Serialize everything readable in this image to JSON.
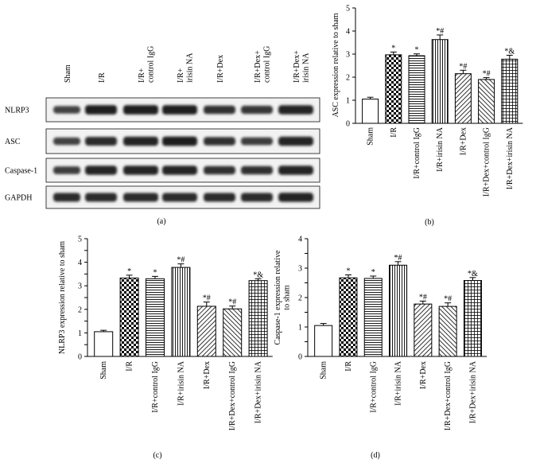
{
  "blot": {
    "lane_labels": [
      "Sham",
      "I/R",
      "I/R+\ncontrol IgG",
      "I/R+\nirisin NA",
      "I/R+Dex",
      "I/R+Dex+\ncontrol IgG",
      "I/R+Dex+\nirisin NA"
    ],
    "rows": [
      {
        "label": "NLRP3",
        "intensity": [
          0.55,
          0.85,
          0.85,
          0.85,
          0.7,
          0.65,
          0.8
        ]
      },
      {
        "label": "ASC",
        "intensity": [
          0.55,
          0.75,
          0.8,
          0.85,
          0.7,
          0.6,
          0.8
        ]
      },
      {
        "label": "Caspase-1",
        "intensity": [
          0.6,
          0.8,
          0.8,
          0.8,
          0.7,
          0.7,
          0.8
        ]
      },
      {
        "label": "GAPDH",
        "intensity": [
          0.75,
          0.75,
          0.75,
          0.75,
          0.75,
          0.75,
          0.8
        ]
      }
    ],
    "panel_label": "(a)"
  },
  "chart_data": [
    {
      "id": "b",
      "type": "bar",
      "panel_label": "(b)",
      "ylabel": "ASC expression relative to sham",
      "ylim": [
        0,
        5
      ],
      "yticks": [
        0,
        1,
        2,
        3,
        4,
        5
      ],
      "categories": [
        "Sham",
        "I/R",
        "I/R+control IgG",
        "I/R+irisin NA",
        "I/R+Dex",
        "I/R+Dex+control IgG",
        "I/R+Dex+irisin NA"
      ],
      "values": [
        1.05,
        2.97,
        2.93,
        3.63,
        2.15,
        1.9,
        2.78
      ],
      "errors": [
        0.08,
        0.12,
        0.08,
        0.2,
        0.15,
        0.08,
        0.17
      ],
      "annotations": [
        "",
        "*",
        "*",
        "*#",
        "*#",
        "*#",
        "*&"
      ],
      "patterns": [
        "white",
        "checker",
        "hlines",
        "vlines",
        "diag",
        "diagrev",
        "grid"
      ]
    },
    {
      "id": "c",
      "type": "bar",
      "panel_label": "(c)",
      "ylabel": "NLRP3 expression relative to sham",
      "ylim": [
        0,
        5
      ],
      "yticks": [
        0,
        0.5,
        1,
        1.5,
        2,
        2.5,
        3,
        3.5,
        4,
        4.5,
        5
      ],
      "yticklabels": [
        "0",
        "",
        "1",
        "",
        "2",
        "",
        "3",
        "",
        "4",
        "",
        "5"
      ],
      "categories": [
        "Sham",
        "I/R",
        "I/R+control IgG",
        "I/R+irisin NA",
        "I/R+Dex",
        "I/R+Dex+control IgG",
        "I/R+Dex+irisin NA"
      ],
      "values": [
        1.05,
        3.33,
        3.3,
        3.78,
        2.13,
        2.02,
        3.22
      ],
      "errors": [
        0.06,
        0.12,
        0.1,
        0.15,
        0.18,
        0.12,
        0.08
      ],
      "annotations": [
        "",
        "*",
        "*",
        "*#",
        "*#",
        "*#",
        "*&"
      ],
      "patterns": [
        "white",
        "checker",
        "hlines",
        "vlines",
        "diag",
        "diagrev",
        "grid"
      ]
    },
    {
      "id": "d",
      "type": "bar",
      "panel_label": "(d)",
      "ylabel": "Caspase-1 expression relative\nto sham",
      "ylim": [
        0,
        4
      ],
      "yticks": [
        0,
        0.5,
        1,
        1.5,
        2,
        2.5,
        3,
        3.5,
        4
      ],
      "yticklabels": [
        "0",
        "",
        "1",
        "",
        "2",
        "",
        "3",
        "",
        "4"
      ],
      "categories": [
        "Sham",
        "I/R",
        "I/R+control IgG",
        "I/R+irisin NA",
        "I/R+Dex",
        "I/R+Dex+control IgG",
        "I/R+Dex+irisin NA"
      ],
      "values": [
        1.05,
        2.67,
        2.65,
        3.1,
        1.78,
        1.7,
        2.58
      ],
      "errors": [
        0.07,
        0.1,
        0.08,
        0.12,
        0.1,
        0.12,
        0.1
      ],
      "annotations": [
        "",
        "*",
        "*",
        "*#",
        "*#",
        "*#",
        "*&"
      ],
      "patterns": [
        "white",
        "checker",
        "hlines",
        "vlines",
        "diag",
        "diagrev",
        "grid"
      ]
    }
  ]
}
